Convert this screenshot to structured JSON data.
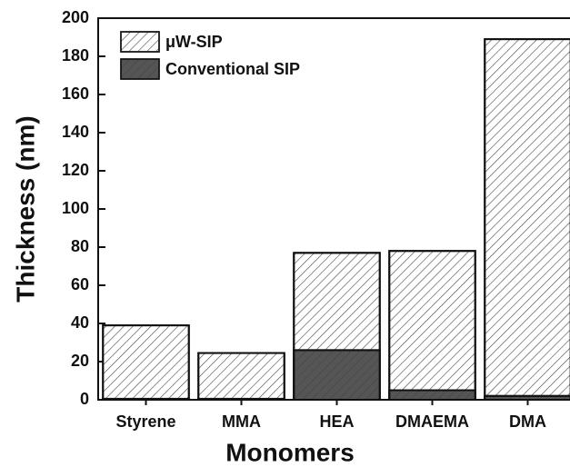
{
  "chart_data": {
    "type": "bar",
    "barmode": "overlay",
    "x_label": "Monomers",
    "y_label": "Thickness (nm)",
    "categories": [
      "Styrene",
      "MMA",
      "HEA",
      "DMAEMA",
      "DMA"
    ],
    "series": [
      {
        "name": "μW-SIP",
        "color": "#ffffff",
        "hatch": true,
        "values": [
          39,
          24.5,
          77,
          78,
          189
        ]
      },
      {
        "name": "Conventional SIP",
        "color": "#555555",
        "hatch": true,
        "values": [
          0.5,
          0.5,
          26,
          5,
          2
        ]
      }
    ],
    "ylim": [
      0,
      200
    ],
    "yticks": [
      0,
      20,
      40,
      60,
      80,
      100,
      120,
      140,
      160,
      180,
      200
    ],
    "legend": "upper left"
  }
}
